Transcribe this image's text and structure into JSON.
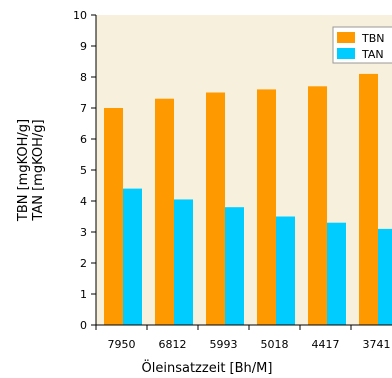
{
  "chart_data": {
    "type": "bar",
    "categories": [
      "7950",
      "6812",
      "5993",
      "5018",
      "4417",
      "3741"
    ],
    "series": [
      {
        "name": "TBN",
        "values": [
          7.0,
          7.3,
          7.5,
          7.6,
          7.7,
          8.1
        ],
        "color": "#FF9900"
      },
      {
        "name": "TAN",
        "values": [
          4.4,
          4.05,
          3.8,
          3.5,
          3.3,
          3.1
        ],
        "color": "#00CCFF"
      }
    ],
    "xlabel": "Öleinsatzzeit [Bh/M]",
    "ylabel_lines": [
      "TBN [mgKOH/g]",
      "TAN [mgKOH/g]"
    ],
    "ylim": [
      0,
      10
    ],
    "yticks": [
      0,
      1,
      2,
      3,
      4,
      5,
      6,
      7,
      8,
      9,
      10
    ],
    "grid": false,
    "legend_position": "top-right",
    "plot_background": "#F7F0DC"
  }
}
